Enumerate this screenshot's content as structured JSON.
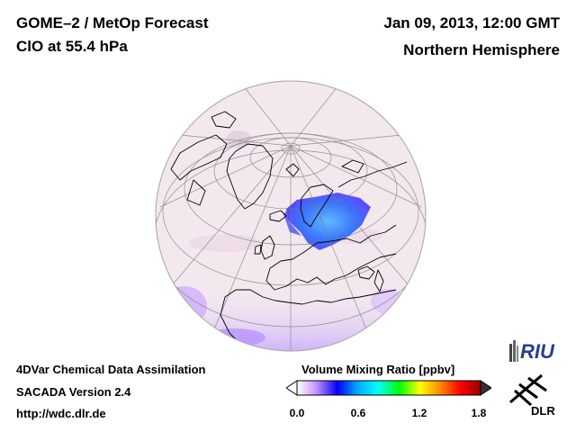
{
  "header": {
    "product": "GOME–2 / MetOp Forecast",
    "species_level": "ClO at 55.4 hPa",
    "datetime": "Jan 09, 2013, 12:00 GMT",
    "region": "Northern Hemisphere"
  },
  "footer": {
    "line1": "4DVar Chemical Data Assimilation",
    "line2": "SACADA Version 2.4",
    "url": "http://wdc.dlr.de"
  },
  "legend": {
    "title": "Volume Mixing Ratio [ppbv]",
    "ticks": [
      "0.0",
      "0.6",
      "1.2",
      "1.8"
    ],
    "min": 0.0,
    "max": 1.8,
    "colors": [
      "#ffffff",
      "#cc99ff",
      "#0000ff",
      "#00aaff",
      "#00ffff",
      "#00ff00",
      "#ffff00",
      "#ff8800",
      "#ff0000",
      "#990000"
    ]
  },
  "logos": {
    "riu": "RIU",
    "dlr": "DLR"
  },
  "map": {
    "projection": "orthographic",
    "background_color": "#f3e6ee",
    "high_color": "#2f6dff",
    "edge_color": "#9c6bff"
  }
}
